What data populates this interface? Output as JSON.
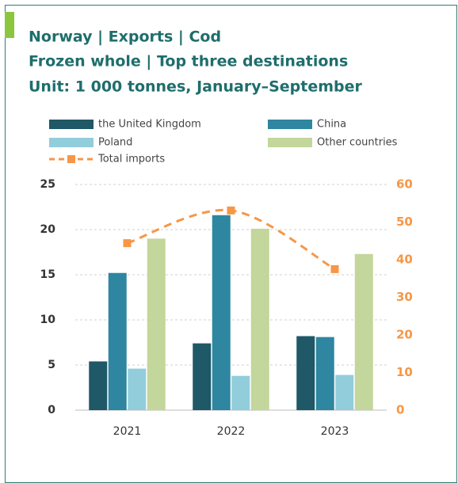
{
  "chart_data": {
    "type": "bar",
    "title_lines": [
      "Norway | Exports | Cod",
      "Frozen whole | Top three destinations",
      "Unit: 1 000 tonnes, January–September"
    ],
    "categories": [
      "2021",
      "2022",
      "2023"
    ],
    "series": [
      {
        "name": "the United Kingdom",
        "color": "#1f5866",
        "values": [
          5.4,
          7.4,
          8.2
        ]
      },
      {
        "name": "China",
        "color": "#2e86a0",
        "values": [
          15.2,
          21.6,
          8.1
        ]
      },
      {
        "name": "Poland",
        "color": "#92cddc",
        "values": [
          4.6,
          3.8,
          3.9
        ]
      },
      {
        "name": "Other countries",
        "color": "#c3d69b",
        "values": [
          19.0,
          20.1,
          17.3
        ]
      },
      {
        "name": "Total imports",
        "color": "#f79646",
        "type": "line",
        "axis": "y2",
        "values": [
          44.4,
          53.1,
          37.5
        ]
      }
    ],
    "ylim": [
      0,
      25
    ],
    "yticks": [
      0,
      5,
      10,
      15,
      20,
      25
    ],
    "y2lim": [
      0,
      60
    ],
    "y2ticks": [
      0,
      10,
      20,
      30,
      40,
      50,
      60
    ],
    "grid": true
  }
}
